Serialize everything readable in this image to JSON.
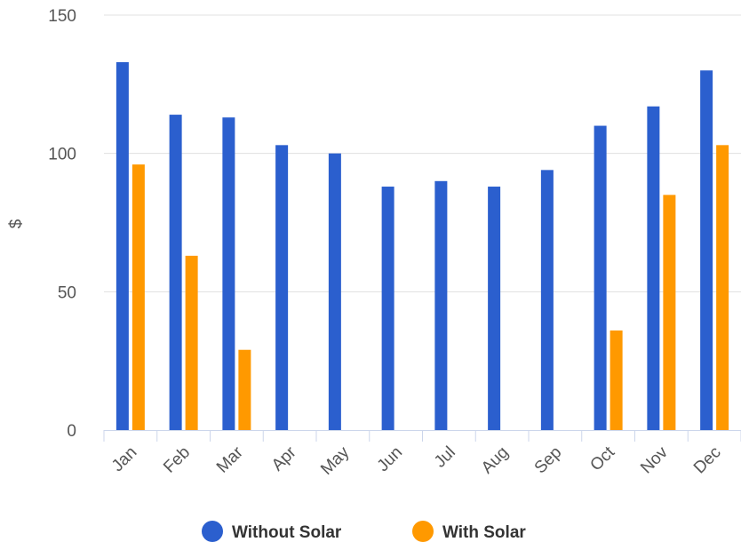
{
  "chart_data": {
    "type": "bar",
    "categories": [
      "Jan",
      "Feb",
      "Mar",
      "Apr",
      "May",
      "Jun",
      "Jul",
      "Aug",
      "Sep",
      "Oct",
      "Nov",
      "Dec"
    ],
    "series": [
      {
        "name": "Without Solar",
        "color": "#2b5fce",
        "values": [
          133,
          114,
          113,
          103,
          100,
          88,
          90,
          88,
          94,
          110,
          117,
          130
        ]
      },
      {
        "name": "With Solar",
        "color": "#ff9900",
        "values": [
          96,
          63,
          29,
          0,
          0,
          0,
          0,
          0,
          0,
          36,
          85,
          103
        ]
      }
    ],
    "ylabel": "$",
    "ylim": [
      0,
      150
    ],
    "yticks": [
      0,
      50,
      100,
      150
    ],
    "grid": true,
    "legend": "bottom"
  }
}
